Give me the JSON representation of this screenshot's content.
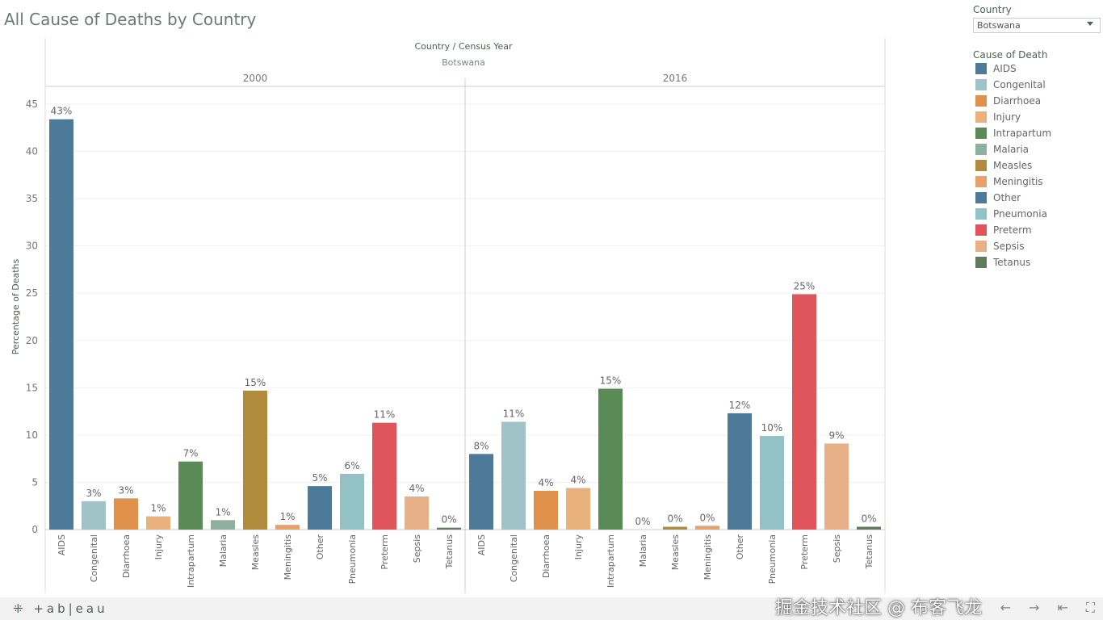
{
  "title": "All Cause of Deaths by Country",
  "filter": {
    "label": "Country",
    "value": "Botswana"
  },
  "legend": {
    "title": "Cause of Death",
    "items": [
      {
        "name": "AIDS",
        "color": "#4e7a99"
      },
      {
        "name": "Congenital",
        "color": "#9fc3c6"
      },
      {
        "name": "Diarrhoea",
        "color": "#e0914c"
      },
      {
        "name": "Injury",
        "color": "#e9b27c"
      },
      {
        "name": "Intrapartum",
        "color": "#5a8a56"
      },
      {
        "name": "Malaria",
        "color": "#8fb0a0"
      },
      {
        "name": "Measles",
        "color": "#b08b3c"
      },
      {
        "name": "Meningitis",
        "color": "#e6a26a"
      },
      {
        "name": "Other",
        "color": "#4e7a99"
      },
      {
        "name": "Pneumonia",
        "color": "#92c1c6"
      },
      {
        "name": "Preterm",
        "color": "#e0545c"
      },
      {
        "name": "Sepsis",
        "color": "#e8b086"
      },
      {
        "name": "Tetanus",
        "color": "#5f7a5c"
      }
    ]
  },
  "chart_data": {
    "type": "bar",
    "title": "All Cause of Deaths by Country",
    "header": "Country / Census Year",
    "country": "Botswana",
    "ylabel": "Percentage of Deaths",
    "ylim": [
      0,
      47
    ],
    "yticks": [
      0,
      5,
      10,
      15,
      20,
      25,
      30,
      35,
      40,
      45
    ],
    "categories": [
      "AIDS",
      "Congenital",
      "Diarrhoea",
      "Injury",
      "Intrapartum",
      "Malaria",
      "Measles",
      "Meningitis",
      "Other",
      "Pneumonia",
      "Preterm",
      "Sepsis",
      "Tetanus"
    ],
    "series": [
      {
        "name": "2000",
        "values": [
          43.4,
          3.0,
          3.3,
          1.4,
          7.2,
          1.0,
          14.7,
          0.5,
          4.6,
          5.9,
          11.3,
          3.5,
          0.2
        ],
        "labels": [
          "43%",
          "3%",
          "3%",
          "1%",
          "7%",
          "1%",
          "15%",
          "1%",
          "5%",
          "6%",
          "11%",
          "4%",
          "0%"
        ]
      },
      {
        "name": "2016",
        "values": [
          8.0,
          11.4,
          4.1,
          4.4,
          14.9,
          0.0,
          0.3,
          0.4,
          12.3,
          9.9,
          24.9,
          9.1,
          0.3
        ],
        "labels": [
          "8%",
          "11%",
          "4%",
          "4%",
          "15%",
          "0%",
          "0%",
          "0%",
          "12%",
          "10%",
          "25%",
          "9%",
          "0%"
        ]
      }
    ]
  },
  "footer": {
    "logo": "+ a b | e a u",
    "watermark": "掘金技术社区 @ 布客飞龙"
  }
}
